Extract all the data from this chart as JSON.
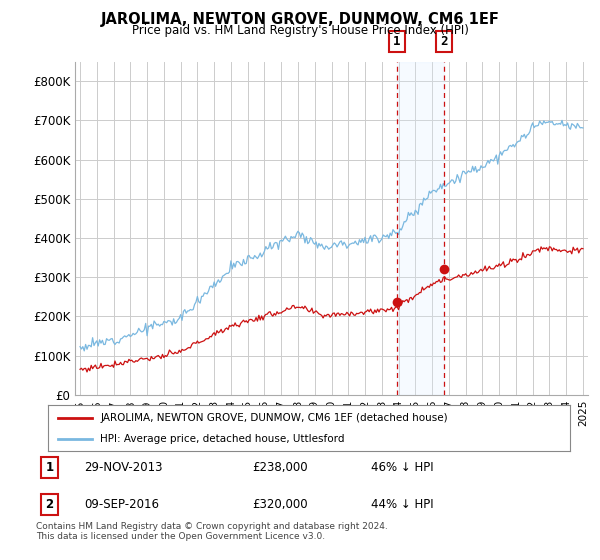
{
  "title": "JAROLIMA, NEWTON GROVE, DUNMOW, CM6 1EF",
  "subtitle": "Price paid vs. HM Land Registry's House Price Index (HPI)",
  "legend_entry1": "JAROLIMA, NEWTON GROVE, DUNMOW, CM6 1EF (detached house)",
  "legend_entry2": "HPI: Average price, detached house, Uttlesford",
  "table_row1": [
    "1",
    "29-NOV-2013",
    "£238,000",
    "46% ↓ HPI"
  ],
  "table_row2": [
    "2",
    "09-SEP-2016",
    "£320,000",
    "44% ↓ HPI"
  ],
  "footnote": "Contains HM Land Registry data © Crown copyright and database right 2024.\nThis data is licensed under the Open Government Licence v3.0.",
  "hpi_color": "#7ab8e0",
  "sale_color": "#cc1111",
  "marker_color": "#cc1111",
  "bg_color": "#ffffff",
  "grid_color": "#cccccc",
  "shade_color": "#ddeeff",
  "ylim": [
    0,
    850000
  ],
  "yticks": [
    0,
    100000,
    200000,
    300000,
    400000,
    500000,
    600000,
    700000,
    800000
  ],
  "ytick_labels": [
    "£0",
    "£100K",
    "£200K",
    "£300K",
    "£400K",
    "£500K",
    "£600K",
    "£700K",
    "£800K"
  ],
  "sale1_year": 2013.91,
  "sale1_price": 238000,
  "sale2_year": 2016.69,
  "sale2_price": 320000,
  "hpi_seed": 12,
  "sale_seed": 77
}
